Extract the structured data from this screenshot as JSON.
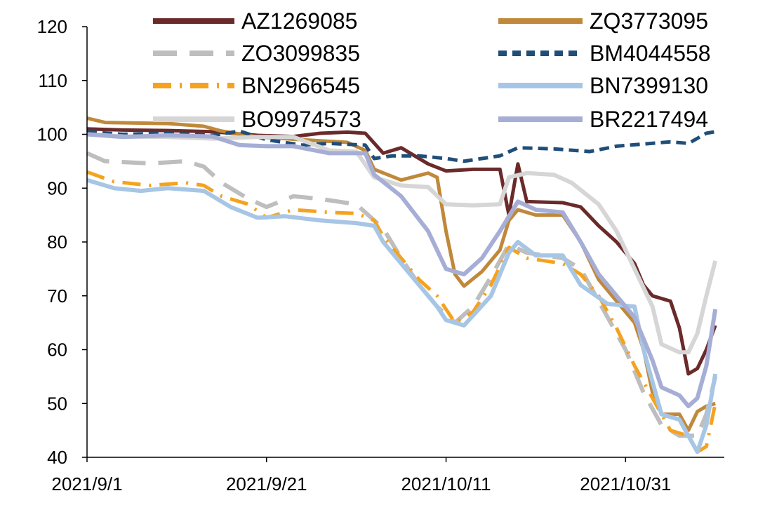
{
  "chart_data": {
    "type": "line",
    "title": "",
    "xlabel": "",
    "ylabel": "",
    "ylim": [
      40,
      120
    ],
    "yticks": [
      40,
      50,
      60,
      70,
      80,
      90,
      100,
      110,
      120
    ],
    "xlim": [
      "2021-09-01",
      "2021-11-11"
    ],
    "xticks": [
      {
        "date": "2021-09-01",
        "label": "2021/9/1"
      },
      {
        "date": "2021-09-21",
        "label": "2021/9/21"
      },
      {
        "date": "2021-10-11",
        "label": "2021/10/11"
      },
      {
        "date": "2021-10-31",
        "label": "2021/10/31"
      }
    ],
    "grid": false,
    "legend": "top, two columns",
    "series": [
      {
        "name": "AZ1269085",
        "color": "#6B2A2A",
        "dash": "solid",
        "width": 5,
        "points": [
          [
            "2021-09-01",
            101
          ],
          [
            "2021-09-05",
            100.8
          ],
          [
            "2021-09-10",
            100.7
          ],
          [
            "2021-09-15",
            100.5
          ],
          [
            "2021-09-20",
            99.8
          ],
          [
            "2021-09-24",
            99.6
          ],
          [
            "2021-09-27",
            100.2
          ],
          [
            "2021-09-30",
            100.4
          ],
          [
            "2021-10-02",
            100.2
          ],
          [
            "2021-10-04",
            96.5
          ],
          [
            "2021-10-06",
            97.5
          ],
          [
            "2021-10-09",
            94.5
          ],
          [
            "2021-10-11",
            93.2
          ],
          [
            "2021-10-14",
            93.5
          ],
          [
            "2021-10-17",
            93.5
          ],
          [
            "2021-10-18",
            85
          ],
          [
            "2021-10-19",
            94.5
          ],
          [
            "2021-10-20",
            87.5
          ],
          [
            "2021-10-24",
            87.3
          ],
          [
            "2021-10-26",
            86.5
          ],
          [
            "2021-10-28",
            83
          ],
          [
            "2021-10-30",
            80
          ],
          [
            "2021-11-01",
            76
          ],
          [
            "2021-11-02",
            72
          ],
          [
            "2021-11-03",
            70
          ],
          [
            "2021-11-05",
            69
          ],
          [
            "2021-11-06",
            64
          ],
          [
            "2021-11-07",
            55.5
          ],
          [
            "2021-11-08",
            56.5
          ],
          [
            "2021-11-09",
            60
          ],
          [
            "2021-11-10",
            64.5
          ]
        ]
      },
      {
        "name": "ZQ3773095",
        "color": "#C0883A",
        "dash": "solid",
        "width": 5,
        "points": [
          [
            "2021-09-01",
            103
          ],
          [
            "2021-09-03",
            102.2
          ],
          [
            "2021-09-10",
            102.0
          ],
          [
            "2021-09-14",
            101.5
          ],
          [
            "2021-09-16",
            100.6
          ],
          [
            "2021-09-20",
            99.5
          ],
          [
            "2021-09-25",
            99.0
          ],
          [
            "2021-09-30",
            98.5
          ],
          [
            "2021-10-02",
            97.0
          ],
          [
            "2021-10-03",
            93.5
          ],
          [
            "2021-10-06",
            91.5
          ],
          [
            "2021-10-09",
            92.8
          ],
          [
            "2021-10-10",
            92.0
          ],
          [
            "2021-10-11",
            82
          ],
          [
            "2021-10-12",
            74
          ],
          [
            "2021-10-13",
            71.8
          ],
          [
            "2021-10-15",
            74.5
          ],
          [
            "2021-10-17",
            78.5
          ],
          [
            "2021-10-18",
            84
          ],
          [
            "2021-10-19",
            86
          ],
          [
            "2021-10-21",
            85
          ],
          [
            "2021-10-24",
            85
          ],
          [
            "2021-10-26",
            80
          ],
          [
            "2021-10-28",
            73
          ],
          [
            "2021-10-30",
            69
          ],
          [
            "2021-11-01",
            65
          ],
          [
            "2021-11-02",
            60
          ],
          [
            "2021-11-03",
            52
          ],
          [
            "2021-11-04",
            48
          ],
          [
            "2021-11-06",
            48
          ],
          [
            "2021-11-07",
            45
          ],
          [
            "2021-11-08",
            48.5
          ],
          [
            "2021-11-09",
            49.5
          ],
          [
            "2021-11-10",
            50
          ]
        ]
      },
      {
        "name": "ZO3099835",
        "color": "#BEBEBE",
        "dash": "long-dash",
        "width": 6,
        "points": [
          [
            "2021-09-01",
            96.5
          ],
          [
            "2021-09-03",
            95
          ],
          [
            "2021-09-08",
            94.6
          ],
          [
            "2021-09-12",
            95
          ],
          [
            "2021-09-14",
            94
          ],
          [
            "2021-09-16",
            91
          ],
          [
            "2021-09-19",
            88
          ],
          [
            "2021-09-21",
            86.5
          ],
          [
            "2021-09-24",
            88.5
          ],
          [
            "2021-09-27",
            88
          ],
          [
            "2021-10-01",
            87
          ],
          [
            "2021-10-04",
            82.5
          ],
          [
            "2021-10-06",
            77
          ],
          [
            "2021-10-08",
            72
          ],
          [
            "2021-10-10",
            68
          ],
          [
            "2021-10-12",
            65
          ],
          [
            "2021-10-14",
            68
          ],
          [
            "2021-10-16",
            73.5
          ],
          [
            "2021-10-18",
            79.5
          ],
          [
            "2021-10-20",
            78
          ],
          [
            "2021-10-24",
            77
          ],
          [
            "2021-10-26",
            75
          ],
          [
            "2021-10-28",
            69
          ],
          [
            "2021-10-31",
            60
          ],
          [
            "2021-11-02",
            52
          ],
          [
            "2021-11-04",
            46
          ],
          [
            "2021-11-06",
            44
          ],
          [
            "2021-11-08",
            44
          ],
          [
            "2021-11-09",
            48
          ],
          [
            "2021-11-10",
            55
          ]
        ]
      },
      {
        "name": "BM4044558",
        "color": "#1F4E79",
        "dash": "short-dash",
        "width": 5,
        "points": [
          [
            "2021-09-01",
            100.5
          ],
          [
            "2021-09-05",
            100.0
          ],
          [
            "2021-09-10",
            100.2
          ],
          [
            "2021-09-15",
            99.8
          ],
          [
            "2021-09-18",
            100.6
          ],
          [
            "2021-09-21",
            99.0
          ],
          [
            "2021-09-25",
            98.0
          ],
          [
            "2021-09-28",
            98.3
          ],
          [
            "2021-10-02",
            98.0
          ],
          [
            "2021-10-03",
            95.5
          ],
          [
            "2021-10-05",
            96.0
          ],
          [
            "2021-10-08",
            96.0
          ],
          [
            "2021-10-11",
            95.5
          ],
          [
            "2021-10-13",
            95.0
          ],
          [
            "2021-10-15",
            95.5
          ],
          [
            "2021-10-17",
            96.0
          ],
          [
            "2021-10-19",
            97.5
          ],
          [
            "2021-10-23",
            97.3
          ],
          [
            "2021-10-27",
            96.8
          ],
          [
            "2021-10-30",
            97.8
          ],
          [
            "2021-11-02",
            98.2
          ],
          [
            "2021-11-05",
            98.6
          ],
          [
            "2021-11-07",
            98.3
          ],
          [
            "2021-11-09",
            100.2
          ],
          [
            "2021-11-10",
            100.5
          ]
        ]
      },
      {
        "name": "BN2966545",
        "color": "#F5A21E",
        "dash": "dash-dot",
        "width": 5,
        "points": [
          [
            "2021-09-01",
            93
          ],
          [
            "2021-09-04",
            91.2
          ],
          [
            "2021-09-08",
            90.5
          ],
          [
            "2021-09-12",
            91
          ],
          [
            "2021-09-14",
            90.5
          ],
          [
            "2021-09-16",
            88.5
          ],
          [
            "2021-09-19",
            87
          ],
          [
            "2021-09-21",
            84.5
          ],
          [
            "2021-09-24",
            86
          ],
          [
            "2021-09-28",
            85.5
          ],
          [
            "2021-10-01",
            85.3
          ],
          [
            "2021-10-03",
            84
          ],
          [
            "2021-10-04",
            81
          ],
          [
            "2021-10-06",
            77
          ],
          [
            "2021-10-08",
            73
          ],
          [
            "2021-10-10",
            70
          ],
          [
            "2021-10-12",
            65
          ],
          [
            "2021-10-14",
            67
          ],
          [
            "2021-10-16",
            72
          ],
          [
            "2021-10-18",
            79
          ],
          [
            "2021-10-20",
            77
          ],
          [
            "2021-10-24",
            76
          ],
          [
            "2021-10-26",
            74
          ],
          [
            "2021-10-28",
            70
          ],
          [
            "2021-10-30",
            64
          ],
          [
            "2021-11-01",
            57
          ],
          [
            "2021-11-03",
            51
          ],
          [
            "2021-11-05",
            45
          ],
          [
            "2021-11-07",
            44
          ],
          [
            "2021-11-08",
            41
          ],
          [
            "2021-11-09",
            42
          ],
          [
            "2021-11-10",
            50
          ]
        ]
      },
      {
        "name": "BN7399130",
        "color": "#A7C6E5",
        "dash": "solid",
        "width": 6,
        "points": [
          [
            "2021-09-01",
            91.5
          ],
          [
            "2021-09-04",
            90
          ],
          [
            "2021-09-07",
            89.5
          ],
          [
            "2021-09-10",
            90
          ],
          [
            "2021-09-14",
            89.5
          ],
          [
            "2021-09-17",
            86.5
          ],
          [
            "2021-09-20",
            84.5
          ],
          [
            "2021-09-23",
            84.8
          ],
          [
            "2021-09-27",
            84
          ],
          [
            "2021-10-01",
            83.5
          ],
          [
            "2021-10-03",
            83
          ],
          [
            "2021-10-04",
            80
          ],
          [
            "2021-10-06",
            76
          ],
          [
            "2021-10-08",
            72
          ],
          [
            "2021-10-10",
            68
          ],
          [
            "2021-10-11",
            65.5
          ],
          [
            "2021-10-13",
            64.5
          ],
          [
            "2021-10-16",
            70
          ],
          [
            "2021-10-18",
            78
          ],
          [
            "2021-10-19",
            80
          ],
          [
            "2021-10-21",
            77.5
          ],
          [
            "2021-10-24",
            77.5
          ],
          [
            "2021-10-26",
            72
          ],
          [
            "2021-10-29",
            68.5
          ],
          [
            "2021-11-01",
            68
          ],
          [
            "2021-11-02",
            60
          ],
          [
            "2021-11-04",
            48
          ],
          [
            "2021-11-06",
            47
          ],
          [
            "2021-11-08",
            41
          ],
          [
            "2021-11-09",
            46
          ],
          [
            "2021-11-10",
            55.5
          ]
        ]
      },
      {
        "name": "BO9974573",
        "color": "#D6D6D6",
        "dash": "solid",
        "width": 6,
        "points": [
          [
            "2021-09-01",
            100
          ],
          [
            "2021-09-05",
            99.6
          ],
          [
            "2021-09-10",
            99.5
          ],
          [
            "2021-09-15",
            99.2
          ],
          [
            "2021-09-20",
            99.5
          ],
          [
            "2021-09-24",
            99.5
          ],
          [
            "2021-09-28",
            97
          ],
          [
            "2021-10-01",
            96.8
          ],
          [
            "2021-10-03",
            92
          ],
          [
            "2021-10-06",
            90.5
          ],
          [
            "2021-10-09",
            90.2
          ],
          [
            "2021-10-11",
            87
          ],
          [
            "2021-10-14",
            86.8
          ],
          [
            "2021-10-17",
            87
          ],
          [
            "2021-10-18",
            92
          ],
          [
            "2021-10-20",
            92.8
          ],
          [
            "2021-10-23",
            92.5
          ],
          [
            "2021-10-25",
            91
          ],
          [
            "2021-10-28",
            87
          ],
          [
            "2021-10-30",
            82
          ],
          [
            "2021-11-01",
            75
          ],
          [
            "2021-11-03",
            68
          ],
          [
            "2021-11-04",
            61
          ],
          [
            "2021-11-06",
            59.5
          ],
          [
            "2021-11-07",
            59.5
          ],
          [
            "2021-11-08",
            63
          ],
          [
            "2021-11-09",
            70
          ],
          [
            "2021-11-10",
            76.5
          ]
        ]
      },
      {
        "name": "BR2217494",
        "color": "#A6AED6",
        "dash": "solid",
        "width": 6,
        "points": [
          [
            "2021-09-01",
            100
          ],
          [
            "2021-09-05",
            99.5
          ],
          [
            "2021-09-10",
            99.8
          ],
          [
            "2021-09-15",
            99.6
          ],
          [
            "2021-09-18",
            98
          ],
          [
            "2021-09-21",
            97.8
          ],
          [
            "2021-09-24",
            97.8
          ],
          [
            "2021-09-28",
            96.5
          ],
          [
            "2021-10-02",
            96.5
          ],
          [
            "2021-10-03",
            92.5
          ],
          [
            "2021-10-06",
            88.5
          ],
          [
            "2021-10-09",
            82
          ],
          [
            "2021-10-11",
            75
          ],
          [
            "2021-10-13",
            74
          ],
          [
            "2021-10-15",
            77
          ],
          [
            "2021-10-17",
            82
          ],
          [
            "2021-10-19",
            87.5
          ],
          [
            "2021-10-21",
            86
          ],
          [
            "2021-10-24",
            85.5
          ],
          [
            "2021-10-26",
            80
          ],
          [
            "2021-10-28",
            74
          ],
          [
            "2021-10-30",
            70
          ],
          [
            "2021-11-01",
            66
          ],
          [
            "2021-11-03",
            58
          ],
          [
            "2021-11-04",
            53
          ],
          [
            "2021-11-06",
            51.5
          ],
          [
            "2021-11-07",
            49.5
          ],
          [
            "2021-11-08",
            51
          ],
          [
            "2021-11-09",
            57
          ],
          [
            "2021-11-10",
            67.5
          ]
        ]
      }
    ]
  }
}
